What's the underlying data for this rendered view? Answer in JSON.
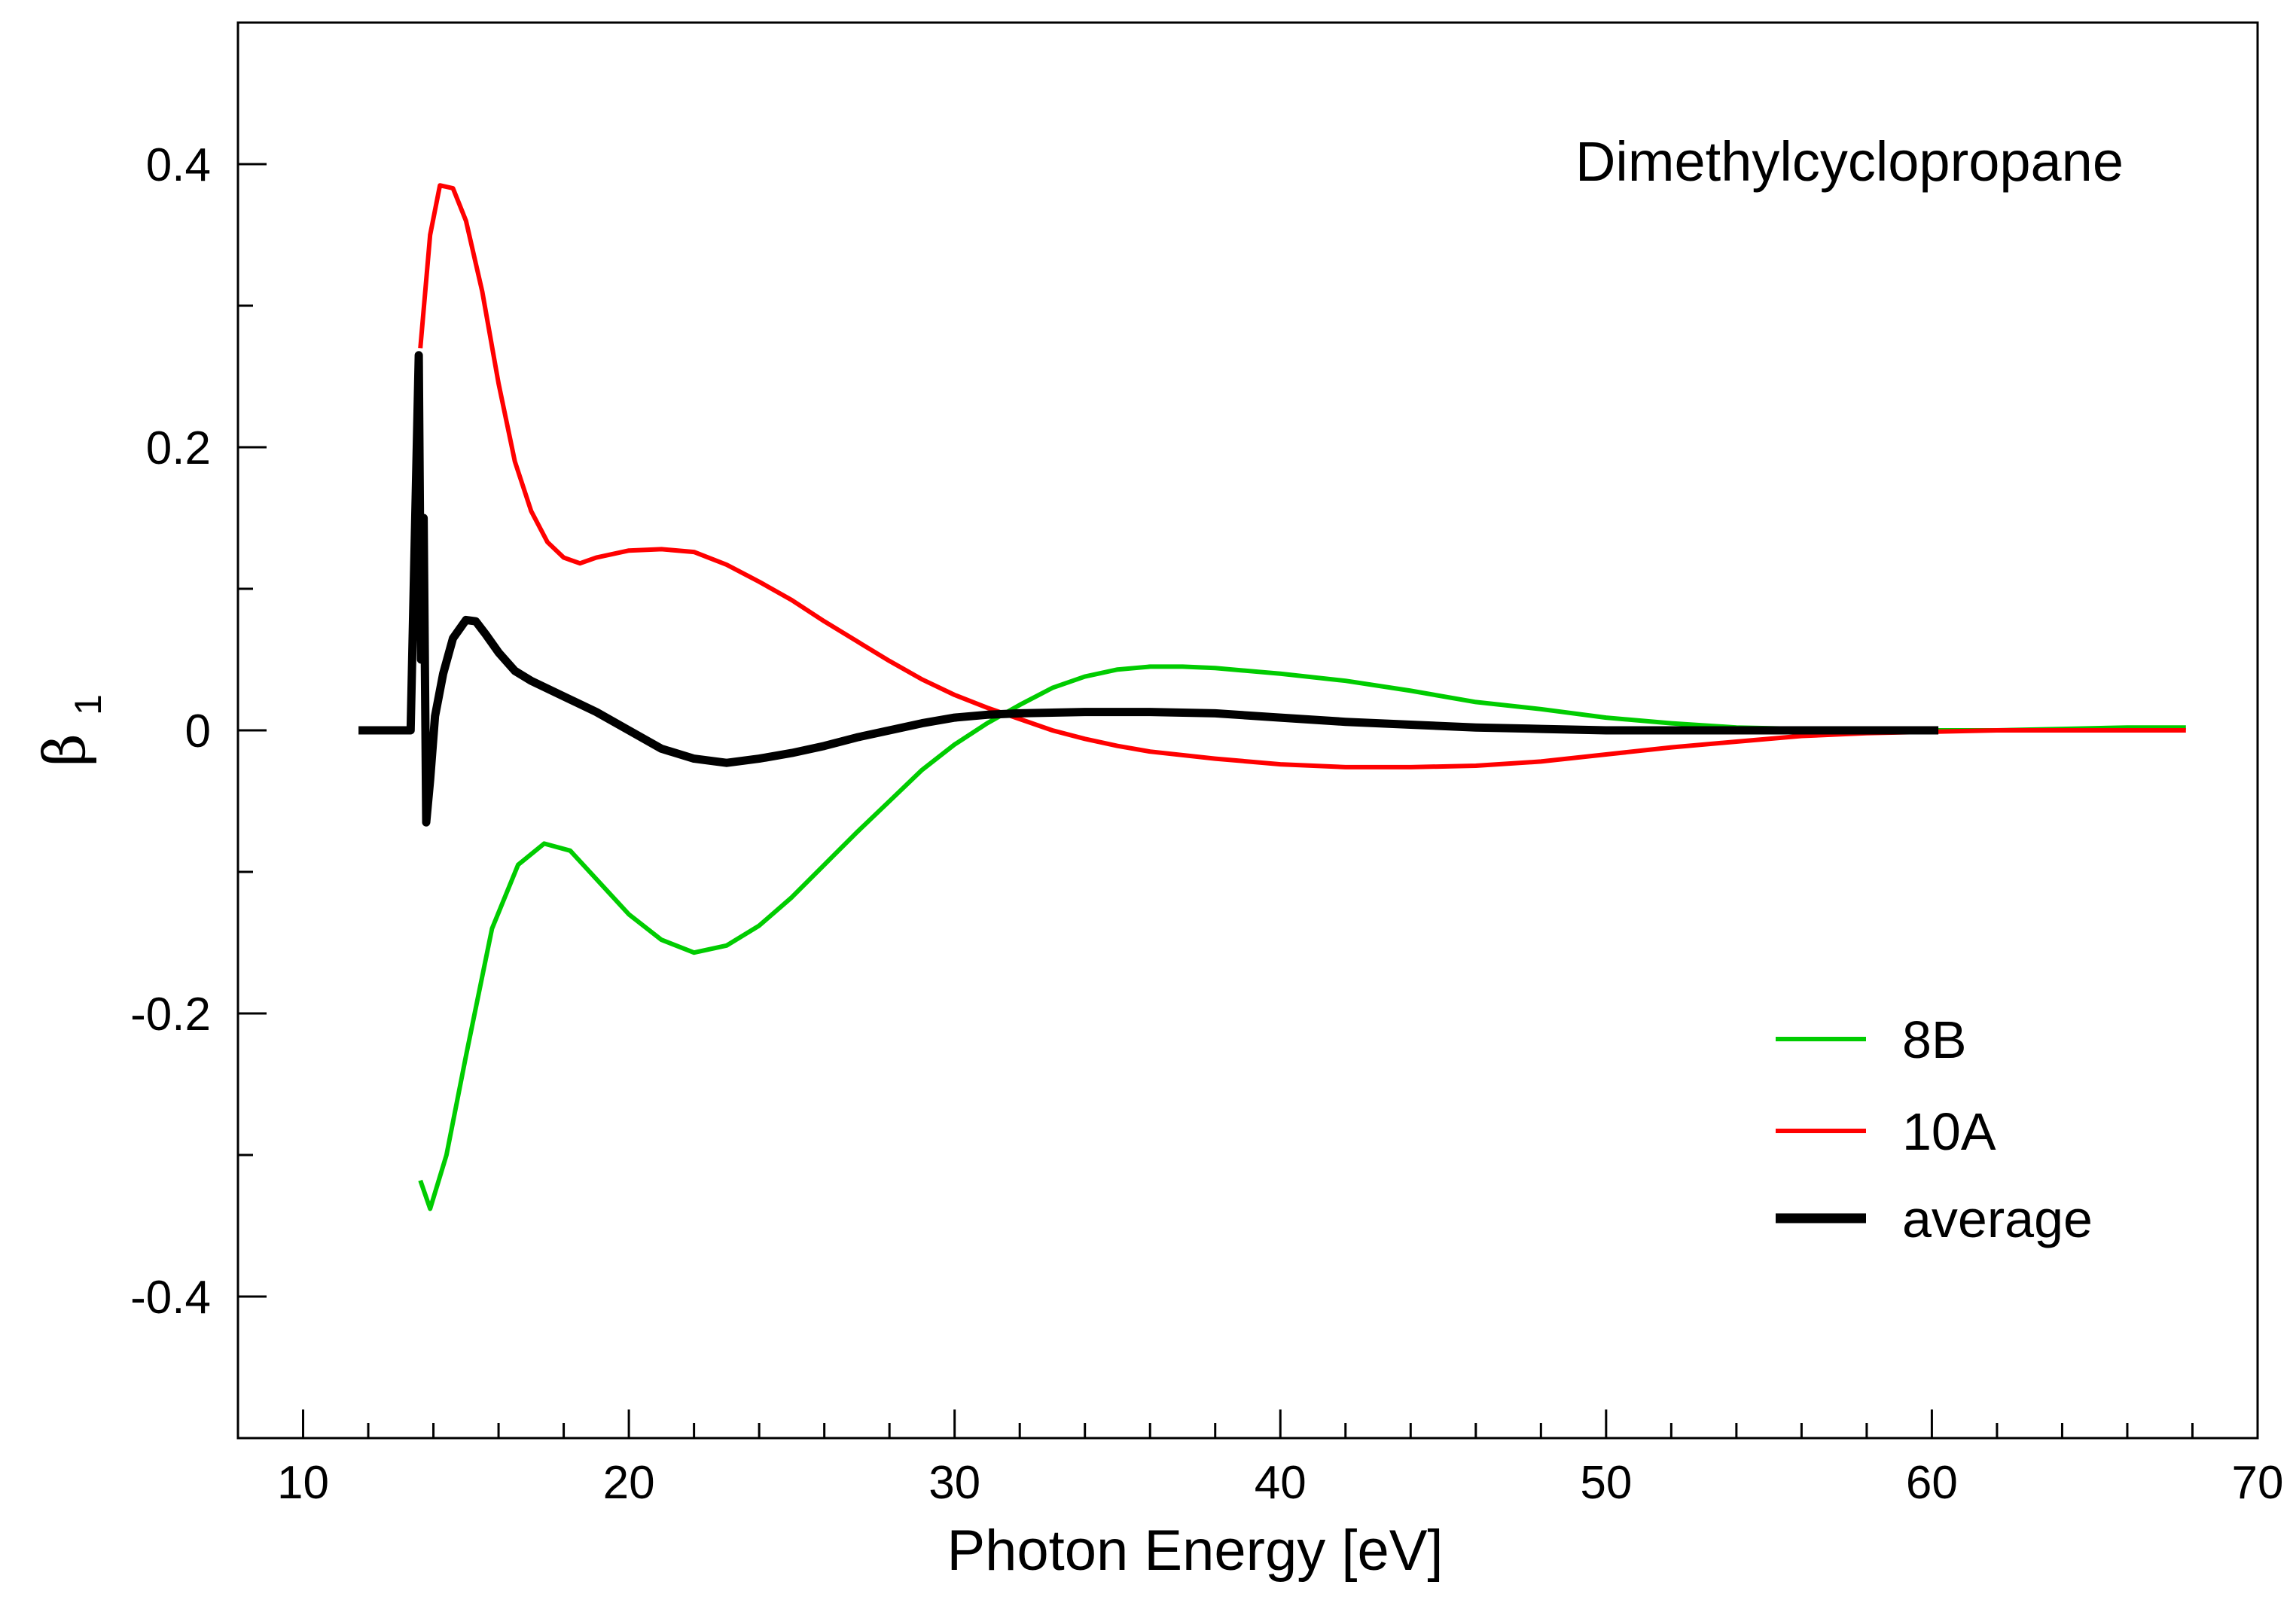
{
  "chart_data": {
    "type": "line",
    "title": "",
    "annotation": "Dimethylcyclopropane",
    "xlabel": "Photon Energy [eV]",
    "ylabel": {
      "symbol": "β",
      "subscript": "1"
    },
    "xlim": [
      8,
      70
    ],
    "ylim": [
      -0.5,
      0.5
    ],
    "xticks": [
      10,
      20,
      30,
      40,
      50,
      60,
      70
    ],
    "xtick_labels": [
      "10",
      "20",
      "30",
      "40",
      "50",
      "60",
      "70"
    ],
    "xminor_step": 2,
    "yticks": [
      -0.4,
      -0.2,
      0,
      0.2,
      0.4
    ],
    "ytick_labels": [
      "-0.4",
      "-0.2",
      "0",
      "0.2",
      "0.4"
    ],
    "yminor_step": 0.1,
    "grid": false,
    "legend_position": "lower-right",
    "series": [
      {
        "name": "8B",
        "color": "#00cc00",
        "x": [
          13.6,
          13.9,
          14.4,
          15.0,
          15.8,
          16.6,
          17.4,
          18.2,
          19.0,
          20.0,
          21.0,
          22.0,
          23.0,
          24.0,
          25.0,
          26.0,
          27.0,
          28.0,
          29.0,
          30.0,
          31.0,
          32.0,
          33.0,
          34.0,
          35.0,
          36.0,
          37.0,
          38.0,
          40.0,
          42.0,
          44.0,
          46.0,
          48.0,
          50.0,
          52.0,
          54.0,
          56.0,
          58.0,
          60.0,
          62.0,
          64.0,
          66.0,
          67.8
        ],
        "y": [
          -0.318,
          -0.338,
          -0.3,
          -0.23,
          -0.14,
          -0.095,
          -0.08,
          -0.085,
          -0.105,
          -0.13,
          -0.148,
          -0.157,
          -0.152,
          -0.138,
          -0.118,
          -0.095,
          -0.072,
          -0.05,
          -0.028,
          -0.01,
          0.005,
          0.018,
          0.03,
          0.038,
          0.043,
          0.045,
          0.045,
          0.044,
          0.04,
          0.035,
          0.028,
          0.02,
          0.015,
          0.009,
          0.005,
          0.002,
          0.001,
          0.0,
          0.0,
          0.0,
          0.001,
          0.002,
          0.002
        ]
      },
      {
        "name": "10A",
        "color": "#ff0000",
        "x": [
          13.6,
          13.9,
          14.2,
          14.6,
          15.0,
          15.5,
          16.0,
          16.5,
          17.0,
          17.5,
          18.0,
          18.5,
          19.0,
          20.0,
          21.0,
          22.0,
          23.0,
          24.0,
          25.0,
          26.0,
          27.0,
          28.0,
          29.0,
          30.0,
          31.0,
          32.0,
          33.0,
          34.0,
          35.0,
          36.0,
          38.0,
          40.0,
          42.0,
          44.0,
          46.0,
          48.0,
          50.0,
          52.0,
          54.0,
          56.0,
          58.0,
          60.0,
          62.0,
          64.0,
          66.0,
          67.8
        ],
        "y": [
          0.27,
          0.35,
          0.385,
          0.383,
          0.36,
          0.31,
          0.245,
          0.19,
          0.155,
          0.133,
          0.122,
          0.118,
          0.122,
          0.127,
          0.128,
          0.126,
          0.117,
          0.105,
          0.092,
          0.077,
          0.063,
          0.049,
          0.036,
          0.025,
          0.016,
          0.008,
          0.0,
          -0.006,
          -0.011,
          -0.015,
          -0.02,
          -0.024,
          -0.026,
          -0.026,
          -0.025,
          -0.022,
          -0.017,
          -0.012,
          -0.008,
          -0.004,
          -0.002,
          -0.001,
          0.0,
          0.0,
          0.0,
          0.0
        ]
      },
      {
        "name": "average",
        "color": "#000000",
        "x": [
          11.7,
          13.0,
          13.3,
          13.55,
          13.62,
          13.7,
          13.78,
          13.9,
          14.05,
          14.3,
          14.6,
          15.0,
          15.3,
          15.6,
          16.0,
          16.5,
          17.0,
          18.0,
          19.0,
          20.0,
          21.0,
          22.0,
          23.0,
          24.0,
          25.0,
          26.0,
          27.0,
          28.0,
          29.0,
          30.0,
          31.0,
          32.0,
          34.0,
          36.0,
          38.0,
          40.0,
          42.0,
          44.0,
          46.0,
          48.0,
          50.0,
          52.0,
          54.0,
          56.0,
          58.0,
          60.2
        ],
        "y": [
          0.0,
          0.0,
          0.0,
          0.265,
          0.05,
          0.15,
          -0.065,
          -0.035,
          0.01,
          0.04,
          0.065,
          0.078,
          0.077,
          0.068,
          0.055,
          0.042,
          0.035,
          0.024,
          0.013,
          0.0,
          -0.013,
          -0.02,
          -0.023,
          -0.02,
          -0.016,
          -0.011,
          -0.005,
          0.0,
          0.005,
          0.009,
          0.011,
          0.012,
          0.013,
          0.013,
          0.012,
          0.009,
          0.006,
          0.004,
          0.002,
          0.001,
          0.0,
          0.0,
          0.0,
          0.0,
          0.0,
          0.0
        ]
      }
    ]
  }
}
